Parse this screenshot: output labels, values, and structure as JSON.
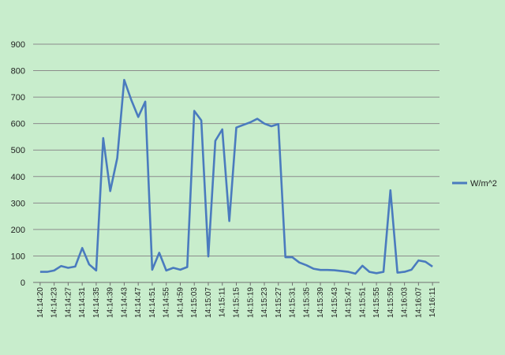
{
  "chart_data": {
    "type": "line",
    "title": "",
    "xlabel": "",
    "ylabel": "",
    "ylim": [
      0,
      900
    ],
    "yticks": [
      0,
      100,
      200,
      300,
      400,
      500,
      600,
      700,
      800,
      900
    ],
    "grid": "horizontal",
    "legend": "right",
    "colors": {
      "series": "#4a7bbe",
      "grid": "#8c8c8c",
      "background": "#c8edcc"
    },
    "x_tick_labels": [
      "14:14:20",
      "14:14:23",
      "14:14:27",
      "14:14:31",
      "14:14:35",
      "14:14:39",
      "14:14:43",
      "14:14:47",
      "14:14:51",
      "14:14:55",
      "14:14:59",
      "14:15:03",
      "14:15:07",
      "14:15:11",
      "14:15:15",
      "14:15:19",
      "14:15:23",
      "14:15:27",
      "14:15:31",
      "14:15:35",
      "14:15:39",
      "14:15:43",
      "14:15:47",
      "14:15:51",
      "14:15:55",
      "14:15:59",
      "14:16:03",
      "14:16:07",
      "14:16:11"
    ],
    "series": [
      {
        "name": "W/m^2",
        "values": [
          40,
          40,
          45,
          62,
          55,
          60,
          130,
          68,
          45,
          545,
          345,
          470,
          765,
          690,
          625,
          683,
          48,
          112,
          45,
          55,
          48,
          58,
          648,
          612,
          98,
          535,
          578,
          232,
          585,
          595,
          605,
          618,
          600,
          590,
          598,
          95,
          95,
          75,
          65,
          52,
          47,
          47,
          46,
          43,
          40,
          33,
          63,
          40,
          35,
          40,
          348,
          37,
          40,
          48,
          83,
          78,
          60
        ]
      }
    ]
  }
}
